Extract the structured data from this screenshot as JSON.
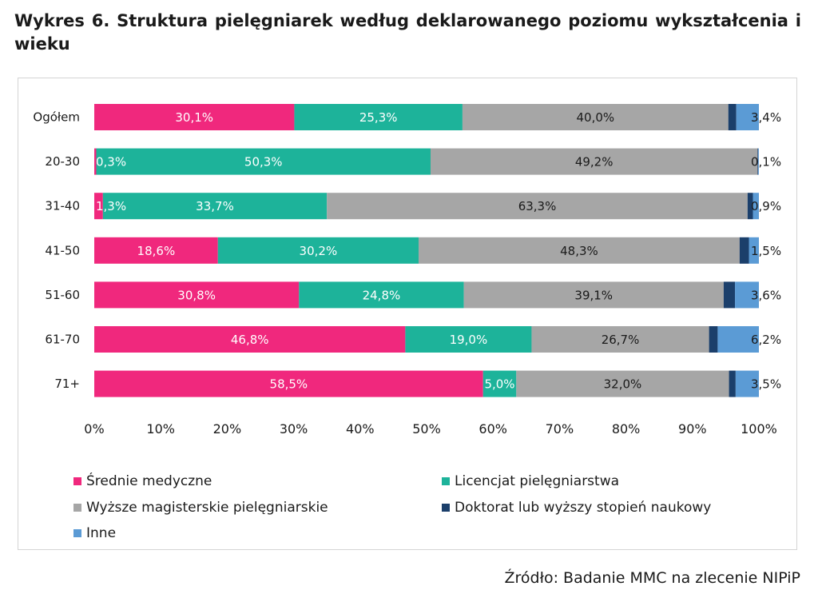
{
  "title": "Wykres 6. Struktura pielęgniarek według deklarowanego poziomu wykształcenia i wieku",
  "source": "Źródło: Badanie MMC na zlecenie NIPiP",
  "chart_data": {
    "type": "bar",
    "orientation": "horizontal",
    "stacked": "percent",
    "categories": [
      "Ogółem",
      "20-30",
      "31-40",
      "41-50",
      "51-60",
      "61-70",
      "71+"
    ],
    "series": [
      {
        "name": "Średnie medyczne",
        "color": "#f0287d",
        "values": [
          30.1,
          0.3,
          1.3,
          18.6,
          30.8,
          46.8,
          58.5
        ],
        "labels": [
          "30,1%",
          "0,3%",
          "1,3%",
          "18,6%",
          "30,8%",
          "46,8%",
          "58,5%"
        ]
      },
      {
        "name": "Licencjat pielęgniarstwa",
        "color": "#1db39a",
        "values": [
          25.3,
          50.3,
          33.7,
          30.2,
          24.8,
          19.0,
          5.0
        ],
        "labels": [
          "25,3%",
          "50,3%",
          "33,7%",
          "30,2%",
          "24,8%",
          "19,0%",
          "5,0%"
        ]
      },
      {
        "name": "Wyższe magisterskie pielęgniarskie",
        "color": "#a6a6a6",
        "values": [
          40.0,
          49.2,
          63.3,
          48.3,
          39.1,
          26.7,
          32.0
        ],
        "labels": [
          "40,0%",
          "49,2%",
          "63,3%",
          "48,3%",
          "39,1%",
          "26,7%",
          "32,0%"
        ]
      },
      {
        "name": "Doktorat lub wyższy stopień naukowy",
        "color": "#1b3f6b",
        "values": [
          1.2,
          0.1,
          0.8,
          1.4,
          1.7,
          1.3,
          1.0
        ],
        "labels": [
          "",
          "",
          "",
          "",
          "",
          "",
          ""
        ]
      },
      {
        "name": "Inne",
        "color": "#5b9bd5",
        "values": [
          3.4,
          0.1,
          0.9,
          1.5,
          3.6,
          6.2,
          3.5
        ],
        "labels": [
          "3,4%",
          "0,1%",
          "0,9%",
          "1,5%",
          "3,6%",
          "6,2%",
          "3,5%"
        ]
      }
    ],
    "xlim": [
      0,
      100
    ],
    "x_ticks": [
      "0%",
      "10%",
      "20%",
      "30%",
      "40%",
      "50%",
      "60%",
      "70%",
      "80%",
      "90%",
      "100%"
    ],
    "grid": false,
    "legend": "bottom"
  }
}
